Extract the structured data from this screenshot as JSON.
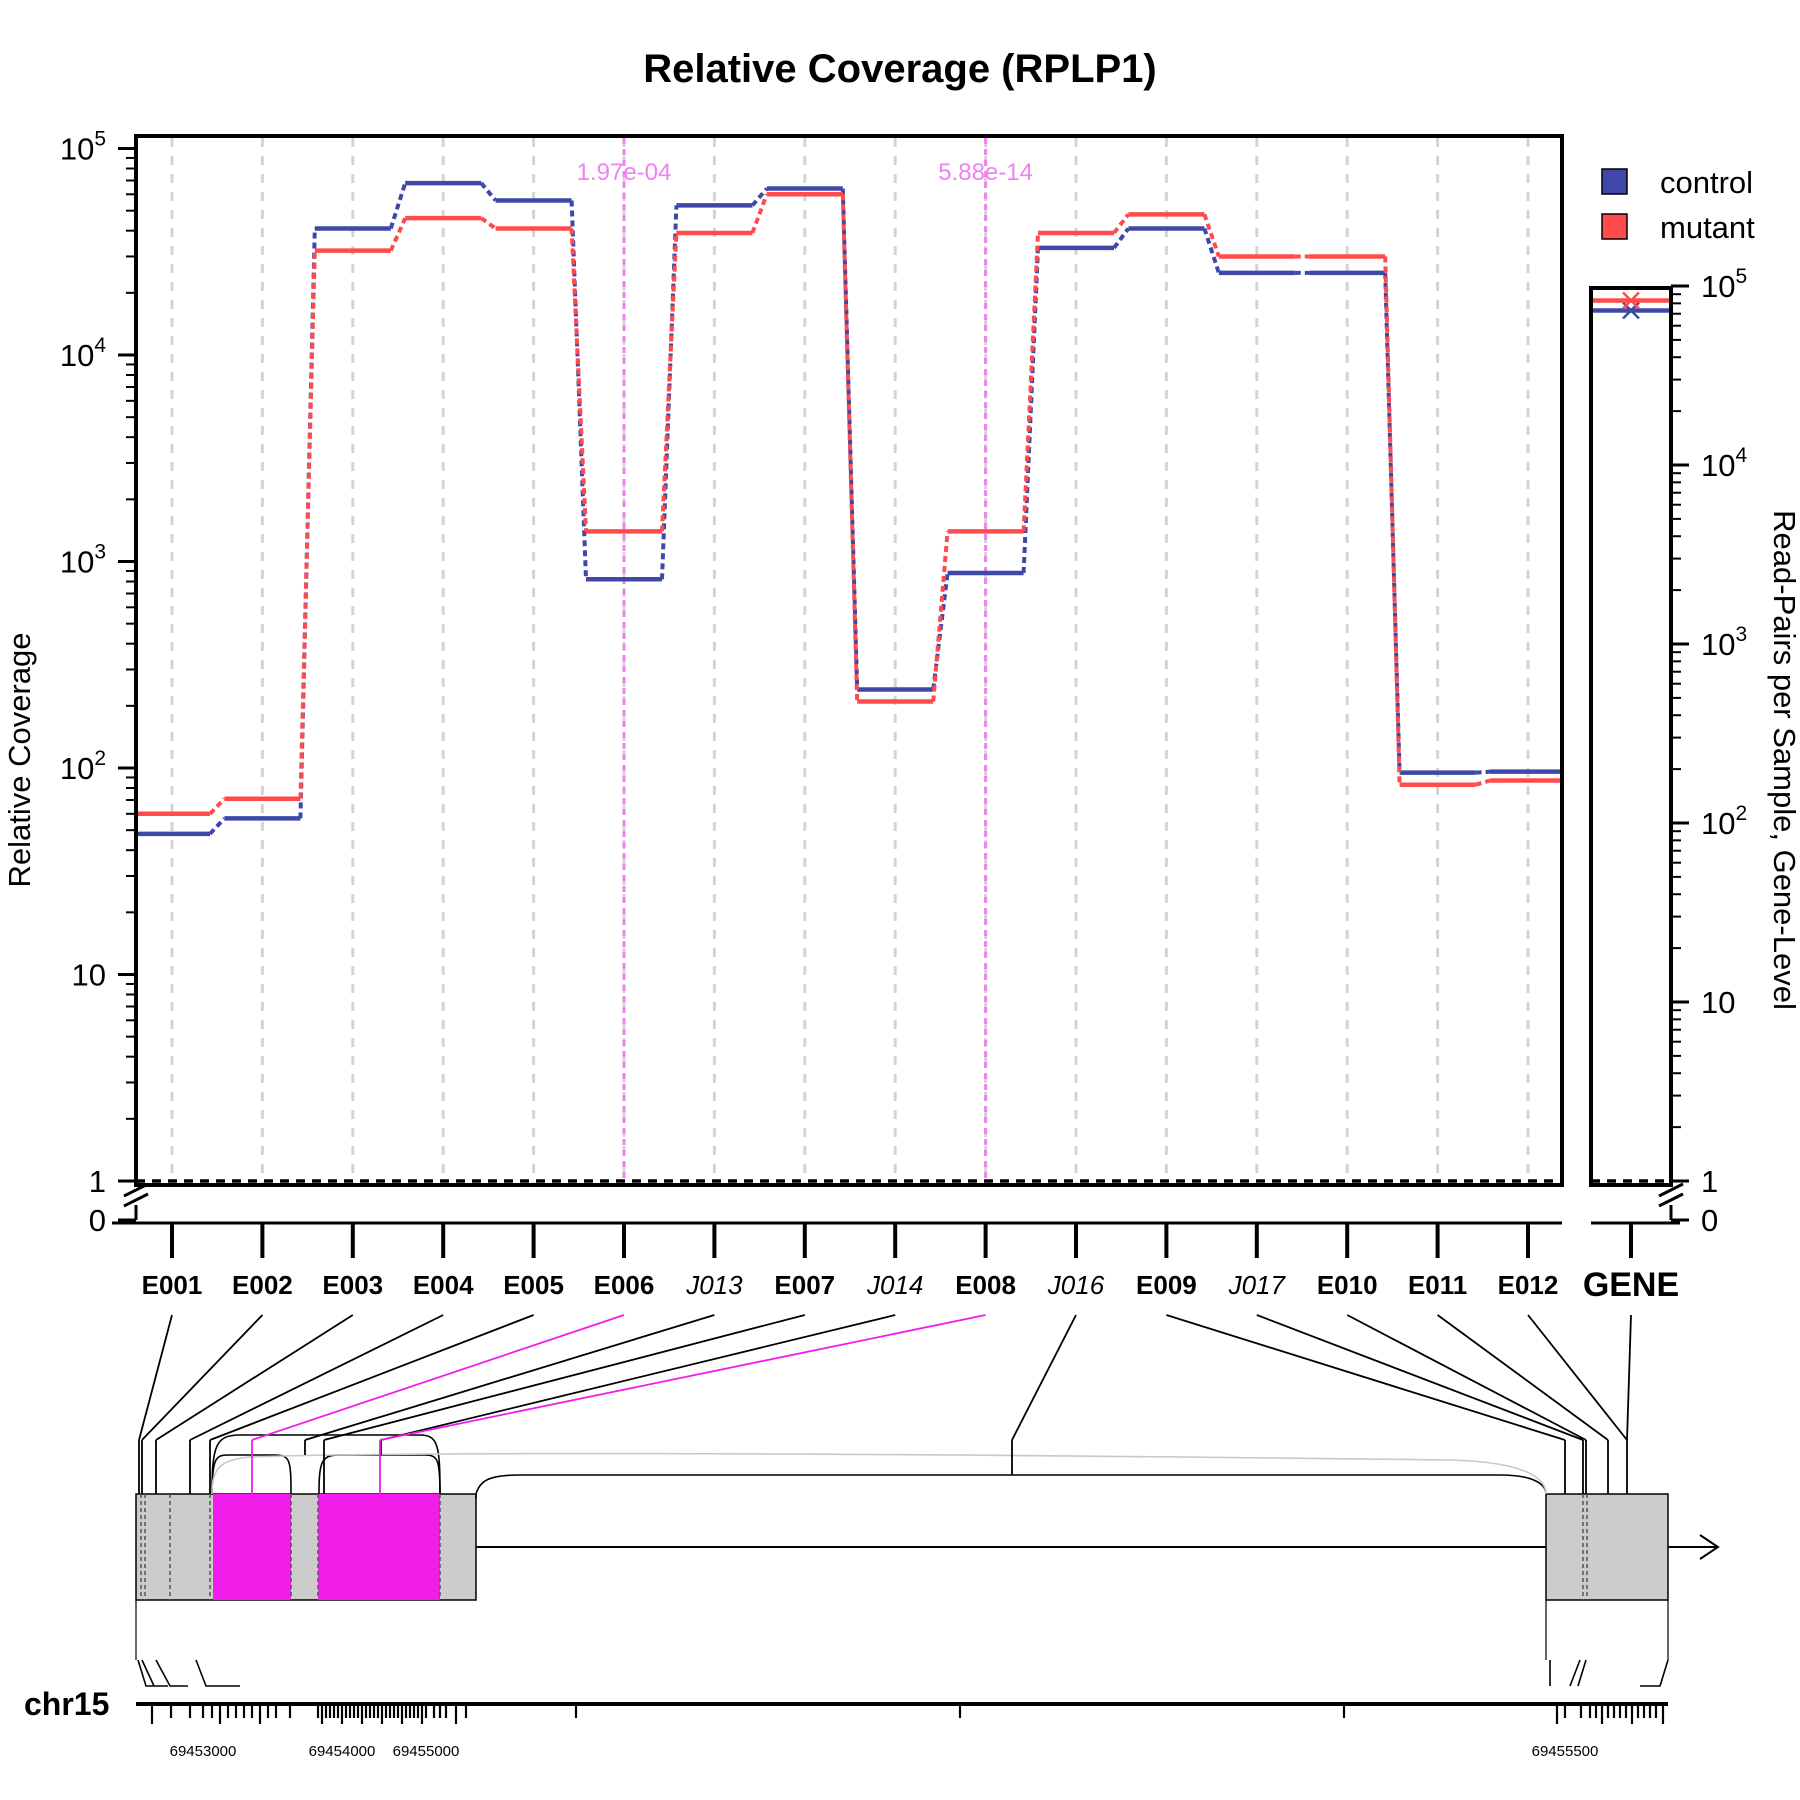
{
  "chart_data": {
    "type": "line",
    "title": "Relative Coverage (RPLP1)",
    "ylabel": "Relative Coverage",
    "y2label": "Read-Pairs per Sample, Gene-Level",
    "yscale": "log (with 0 break)",
    "y_ticks": [
      "0",
      "1",
      "10",
      "10^2",
      "10^3",
      "10^4",
      "10^5"
    ],
    "y2_ticks": [
      "0",
      "1",
      "10",
      "10^2",
      "10^3",
      "10^4",
      "10^5"
    ],
    "grid": "vertical dashed",
    "legend_position": "top-right",
    "colors": {
      "control": "#3f48a8",
      "mutant": "#ff4b4b",
      "highlight": "#ee82ee",
      "exon_highlight": "#f01ee8",
      "exon": "#cccccc"
    },
    "features": [
      {
        "id": "E001",
        "kind": "exon"
      },
      {
        "id": "E002",
        "kind": "exon"
      },
      {
        "id": "E003",
        "kind": "exon"
      },
      {
        "id": "E004",
        "kind": "exon"
      },
      {
        "id": "E005",
        "kind": "exon"
      },
      {
        "id": "E006",
        "kind": "exon",
        "pvalue": "1.97e-04"
      },
      {
        "id": "J013",
        "kind": "junction"
      },
      {
        "id": "E007",
        "kind": "exon"
      },
      {
        "id": "J014",
        "kind": "junction"
      },
      {
        "id": "E008",
        "kind": "exon",
        "pvalue": "5.88e-14"
      },
      {
        "id": "J016",
        "kind": "junction"
      },
      {
        "id": "E009",
        "kind": "exon"
      },
      {
        "id": "J017",
        "kind": "junction"
      },
      {
        "id": "E010",
        "kind": "exon"
      },
      {
        "id": "E011",
        "kind": "exon"
      },
      {
        "id": "E012",
        "kind": "exon"
      }
    ],
    "series": [
      {
        "name": "control",
        "values": [
          48,
          57,
          41000,
          68000,
          56000,
          820,
          53000,
          64000,
          240,
          880,
          33000,
          41000,
          25000,
          25000,
          95,
          96
        ]
      },
      {
        "name": "mutant",
        "values": [
          60,
          71,
          32000,
          46000,
          41000,
          1400,
          39000,
          60000,
          210,
          1400,
          39000,
          48000,
          30000,
          30000,
          83,
          87
        ]
      }
    ],
    "gene_level": {
      "label": "GENE",
      "control": 73000,
      "mutant": 83000
    },
    "chromosome": "chr15",
    "coordinate_labels": [
      "69453000",
      "69454000",
      "69455000",
      "69455500"
    ]
  }
}
